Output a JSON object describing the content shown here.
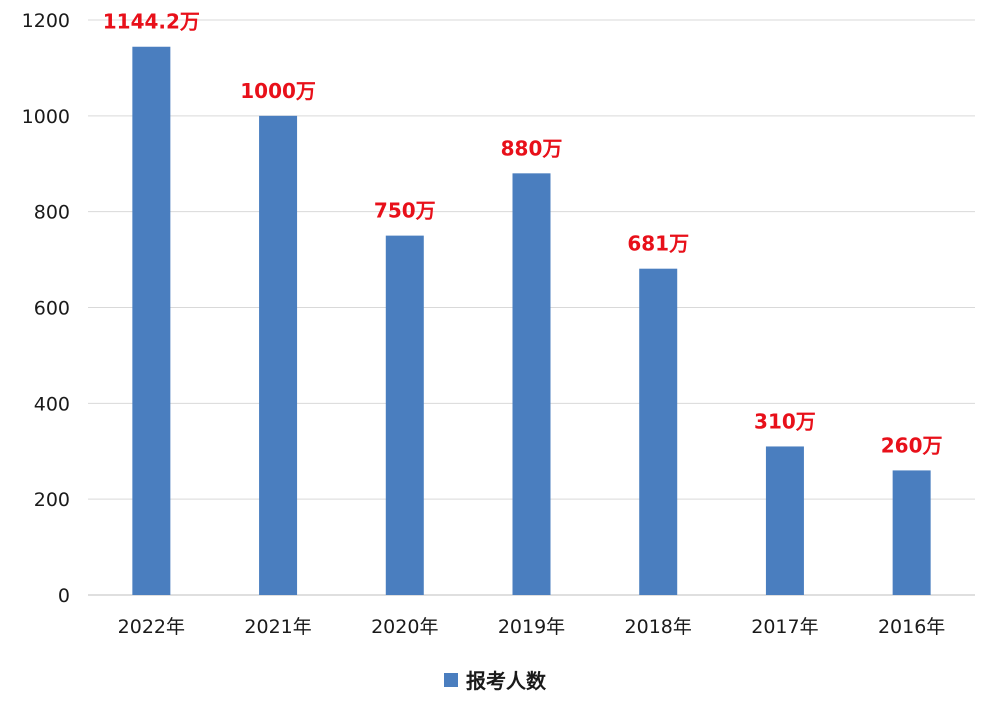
{
  "chart_data": {
    "type": "bar",
    "categories": [
      "2022年",
      "2021年",
      "2020年",
      "2019年",
      "2018年",
      "2017年",
      "2016年"
    ],
    "series": [
      {
        "name": "报考人数",
        "values": [
          1144.2,
          1000,
          750,
          880,
          681,
          310,
          260
        ],
        "labels": [
          "1144.2万",
          "1000万",
          "750万",
          "880万",
          "681万",
          "310万",
          "260万"
        ]
      }
    ],
    "ylim": [
      0,
      1200
    ],
    "yticks": [
      0,
      200,
      400,
      600,
      800,
      1000,
      1200
    ],
    "grid": true,
    "legend_position": "bottom",
    "colors": {
      "bar": "#4a7ebf",
      "data_label": "#e8101a",
      "grid": "#d9d9d9"
    }
  }
}
